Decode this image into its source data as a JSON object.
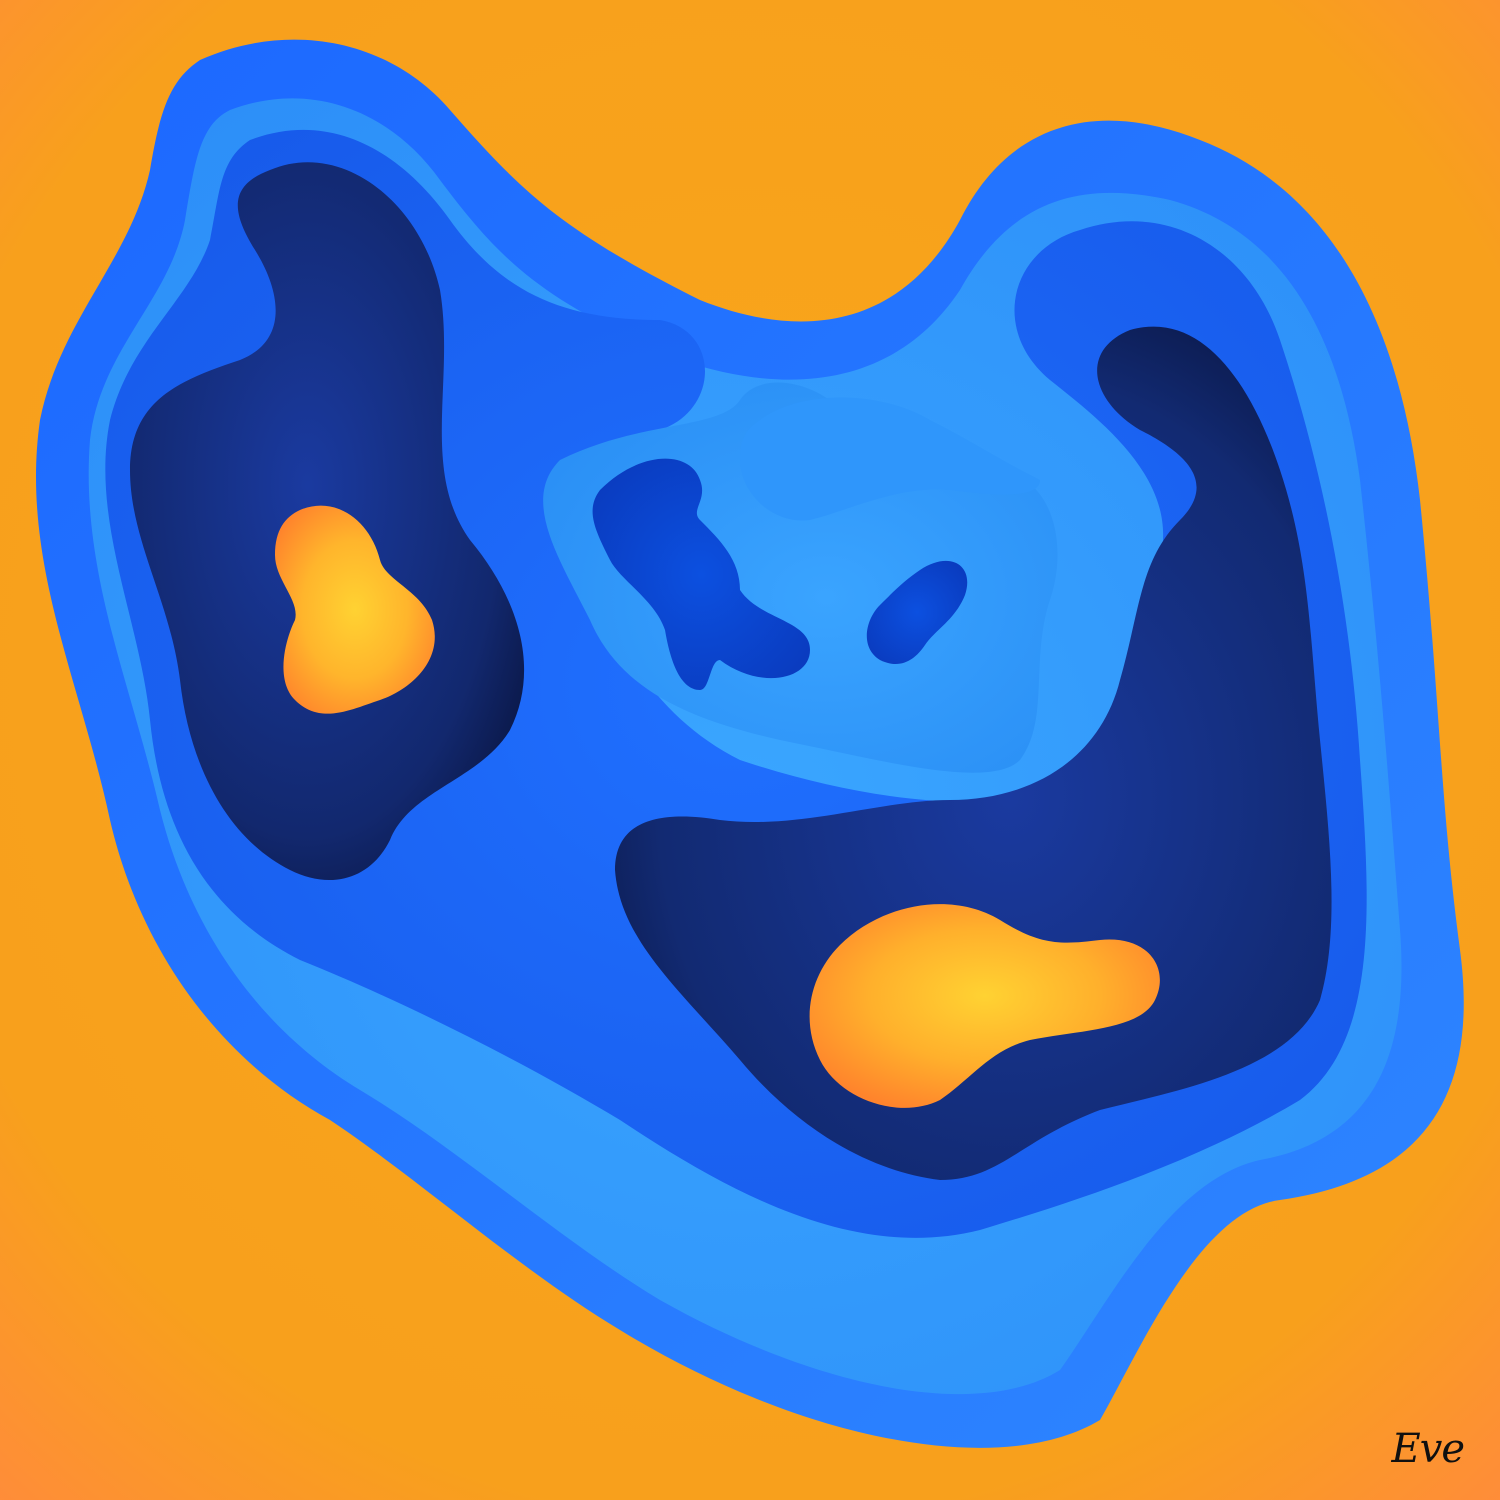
{
  "signature": {
    "text": "Eve"
  },
  "palette": {
    "background": "#f8a01c",
    "background_edge": "#ff8c3a",
    "blue_outer": "#1f6dff",
    "blue_light": "#3aa0ff",
    "blue_mid": "#1f66f5",
    "blue_deep": "#0a3fc4",
    "navy": "#142c78",
    "navy_dark": "#0a1240",
    "hot_orange": "#ff8a2c",
    "hot_yellow": "#ffcf30"
  }
}
